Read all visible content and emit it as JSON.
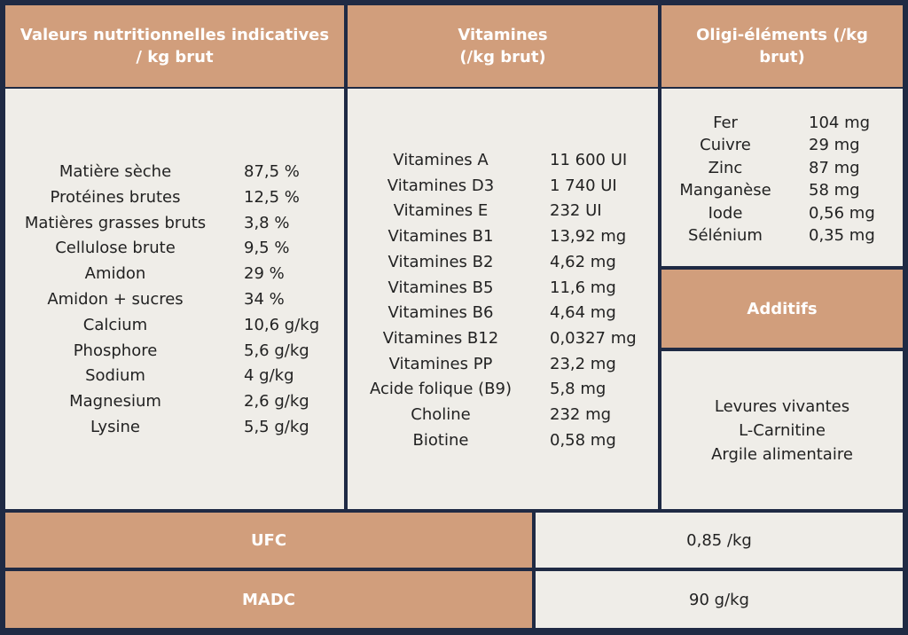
{
  "columns": [
    {
      "title_lines": [
        "Valeurs nutritionnelles indicatives",
        "/ kg brut"
      ],
      "rows": [
        [
          "Matière sèche",
          "87,5 %"
        ],
        [
          "Protéines brutes",
          "12,5 %"
        ],
        [
          "Matières grasses bruts",
          "3,8 %"
        ],
        [
          "Cellulose brute",
          "9,5 %"
        ],
        [
          "Amidon",
          "29 %"
        ],
        [
          "Amidon + sucres",
          "34 %"
        ],
        [
          "Calcium",
          "10,6 g/kg"
        ],
        [
          "Phosphore",
          "5,6 g/kg"
        ],
        [
          "Sodium",
          "4 g/kg"
        ],
        [
          "Magnesium",
          "2,6 g/kg"
        ],
        [
          "Lysine",
          "5,5 g/kg"
        ]
      ]
    },
    {
      "title_lines": [
        "Vitamines",
        "(/kg brut)"
      ],
      "rows": [
        [
          "Vitamines A",
          "11 600 UI"
        ],
        [
          "Vitamines D3",
          "1 740 UI"
        ],
        [
          "Vitamines E",
          "232 UI"
        ],
        [
          "Vitamines B1",
          "13,92 mg"
        ],
        [
          "Vitamines B2",
          "4,62 mg"
        ],
        [
          "Vitamines B5",
          "11,6 mg"
        ],
        [
          "Vitamines B6",
          "4,64 mg"
        ],
        [
          "Vitamines B12",
          "0,0327 mg"
        ],
        [
          "Vitamines PP",
          "23,2 mg"
        ],
        [
          "Acide folique (B9)",
          "5,8 mg"
        ],
        [
          "Choline",
          "232 mg"
        ],
        [
          "Biotine",
          "0,58 mg"
        ]
      ]
    },
    {
      "title_lines": [
        "Oligi-éléments (/kg",
        "brut)"
      ],
      "rows": [
        [
          "Fer",
          "104 mg"
        ],
        [
          "Cuivre",
          "29 mg"
        ],
        [
          "Zinc",
          "87 mg"
        ],
        [
          "Manganèse",
          "58 mg"
        ],
        [
          "Iode",
          "0,56 mg"
        ],
        [
          "Sélénium",
          "0,35 mg"
        ]
      ]
    }
  ],
  "additifs": {
    "title": "Additifs",
    "items": [
      "Levures vivantes",
      "L-Carnitine",
      "Argile alimentaire"
    ]
  },
  "footer": [
    [
      "UFC",
      "0,85 /kg"
    ],
    [
      "MADC",
      "90 g/kg"
    ]
  ]
}
